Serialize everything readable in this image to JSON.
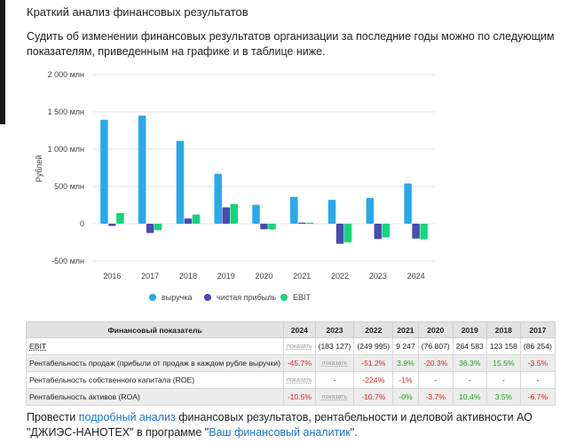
{
  "title": "Краткий анализ финансовых результатов",
  "intro": "Судить об изменении финансовых результатов организации за последние годы можно по следующим показателям, приведенным на графике и в таблице ниже.",
  "chart_data": {
    "type": "bar",
    "categories": [
      "2016",
      "2017",
      "2018",
      "2019",
      "2020",
      "2021",
      "2022",
      "2023",
      "2024"
    ],
    "series": [
      {
        "name": "выручка",
        "color": "#29a9eb",
        "values": [
          1395,
          1450,
          1110,
          670,
          255,
          360,
          320,
          345,
          540
        ]
      },
      {
        "name": "чистая прибыль",
        "color": "#4a4ab0",
        "values": [
          -30,
          -125,
          70,
          220,
          -75,
          5,
          -270,
          -205,
          -200
        ]
      },
      {
        "name": "EBIT",
        "color": "#13d67a",
        "values": [
          145,
          -86,
          123,
          265,
          -77,
          9,
          -250,
          -183,
          -210
        ]
      }
    ],
    "ylabel": "Рублей",
    "ylim": [
      -500,
      2000
    ],
    "yticks": [
      {
        "value": 2000,
        "label": "2 000 млн"
      },
      {
        "value": 1500,
        "label": "1 500 млн"
      },
      {
        "value": 1000,
        "label": "1 000 млн"
      },
      {
        "value": 500,
        "label": "500 млн"
      },
      {
        "value": 0,
        "label": "0"
      },
      {
        "value": -500,
        "label": "-500 млн"
      }
    ],
    "grid": true,
    "legend_position": "bottom"
  },
  "table": {
    "header": [
      "Финансовый показатель",
      "2024",
      "2023",
      "2022",
      "2021",
      "2020",
      "2019",
      "2018",
      "2017"
    ],
    "rows": [
      {
        "label": "EBIT",
        "link": true,
        "cells": [
          {
            "v": "показать",
            "c": "show"
          },
          {
            "v": "(183 127)"
          },
          {
            "v": "(249 995)"
          },
          {
            "v": "9 247"
          },
          {
            "v": "(76 807)"
          },
          {
            "v": "264 583"
          },
          {
            "v": "123 158"
          },
          {
            "v": "(86 254)"
          }
        ]
      },
      {
        "label": "Рентабельность продаж (прибыли от продаж в каждом рубле выручки)",
        "cells": [
          {
            "v": "-45.7%",
            "c": "neg"
          },
          {
            "v": "показать",
            "c": "show"
          },
          {
            "v": "-51.2%",
            "c": "neg"
          },
          {
            "v": "3.9%",
            "c": "pos"
          },
          {
            "v": "-20.3%",
            "c": "neg"
          },
          {
            "v": "36.3%",
            "c": "pos"
          },
          {
            "v": "15.5%",
            "c": "pos"
          },
          {
            "v": "-3.5%",
            "c": "neg"
          }
        ]
      },
      {
        "label": "Рентабельность собственного капитала (ROE)",
        "cells": [
          {
            "v": "показать",
            "c": "show"
          },
          {
            "v": "-"
          },
          {
            "v": "-224%",
            "c": "neg"
          },
          {
            "v": "-1%",
            "c": "neg"
          },
          {
            "v": "-"
          },
          {
            "v": "-"
          },
          {
            "v": "-"
          },
          {
            "v": "-"
          }
        ]
      },
      {
        "label": "Рентабельность активов (ROA)",
        "cells": [
          {
            "v": "-10.5%",
            "c": "neg"
          },
          {
            "v": "показать",
            "c": "show"
          },
          {
            "v": "-10.7%",
            "c": "neg"
          },
          {
            "v": "-0%",
            "c": "pos"
          },
          {
            "v": "-3.7%",
            "c": "neg"
          },
          {
            "v": "10.4%",
            "c": "pos"
          },
          {
            "v": "3.5%",
            "c": "pos"
          },
          {
            "v": "-6.7%",
            "c": "neg"
          }
        ]
      }
    ]
  },
  "footer": {
    "t1": "Провести ",
    "link1": "подробный анализ",
    "t2": " финансовых результатов, рентабельности и деловой активности АО \"ДЖИЭС-НАНОТЕХ\" в программе \"",
    "link2": "Ваш финансовый аналитик",
    "t3": "\"."
  }
}
